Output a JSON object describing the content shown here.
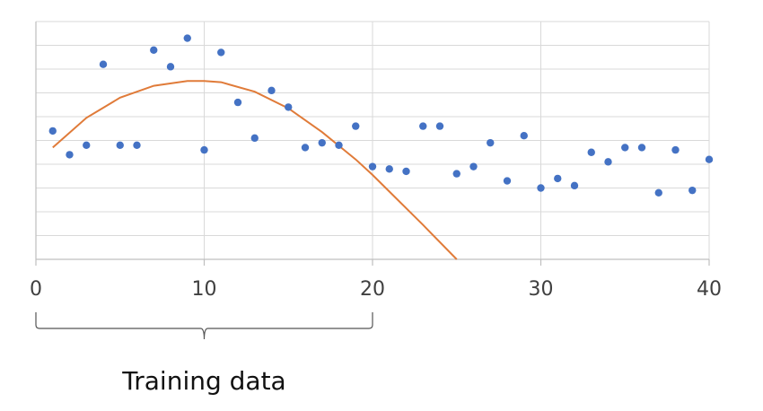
{
  "chart_data": {
    "type": "scatter",
    "title": "",
    "xlabel": "",
    "ylabel": "",
    "xlim": [
      0,
      40
    ],
    "ylim": [
      0,
      10
    ],
    "grid": true,
    "x_ticks": [
      0,
      10,
      20,
      30,
      40
    ],
    "x_tick_labels": [
      "0",
      "10",
      "20",
      "30",
      "40"
    ],
    "y_tick_labels_shown": false,
    "series": [
      {
        "kind": "points",
        "color": "#4472c4",
        "x": [
          1,
          2,
          3,
          4,
          5,
          6,
          7,
          8,
          9,
          10,
          11,
          12,
          13,
          14,
          15,
          16,
          17,
          18,
          19,
          20,
          21,
          22,
          23,
          24,
          25,
          26,
          27,
          28,
          29,
          30,
          31,
          32,
          33,
          34,
          35,
          36,
          37,
          38,
          39,
          40
        ],
        "y": [
          5.4,
          4.4,
          4.8,
          8.2,
          4.8,
          4.8,
          8.8,
          8.1,
          9.3,
          4.6,
          8.7,
          6.6,
          5.1,
          7.1,
          6.4,
          4.7,
          4.9,
          4.8,
          5.6,
          3.9,
          3.8,
          3.7,
          5.6,
          5.6,
          3.6,
          3.9,
          4.9,
          3.3,
          5.2,
          3.0,
          3.4,
          3.1,
          4.5,
          4.1,
          4.7,
          4.7,
          2.8,
          4.6,
          2.9,
          4.2
        ]
      },
      {
        "kind": "fit-curve",
        "color": "#e07b39",
        "x": [
          1,
          3,
          5,
          7,
          9,
          10,
          11,
          13,
          15,
          17,
          19,
          20,
          21,
          23,
          25
        ],
        "y": [
          4.7,
          5.95,
          6.8,
          7.3,
          7.5,
          7.5,
          7.45,
          7.05,
          6.35,
          5.35,
          4.2,
          3.55,
          2.85,
          1.45,
          0.0
        ]
      }
    ],
    "annotation": {
      "label": "Training data",
      "x_range": [
        0,
        20
      ]
    }
  }
}
